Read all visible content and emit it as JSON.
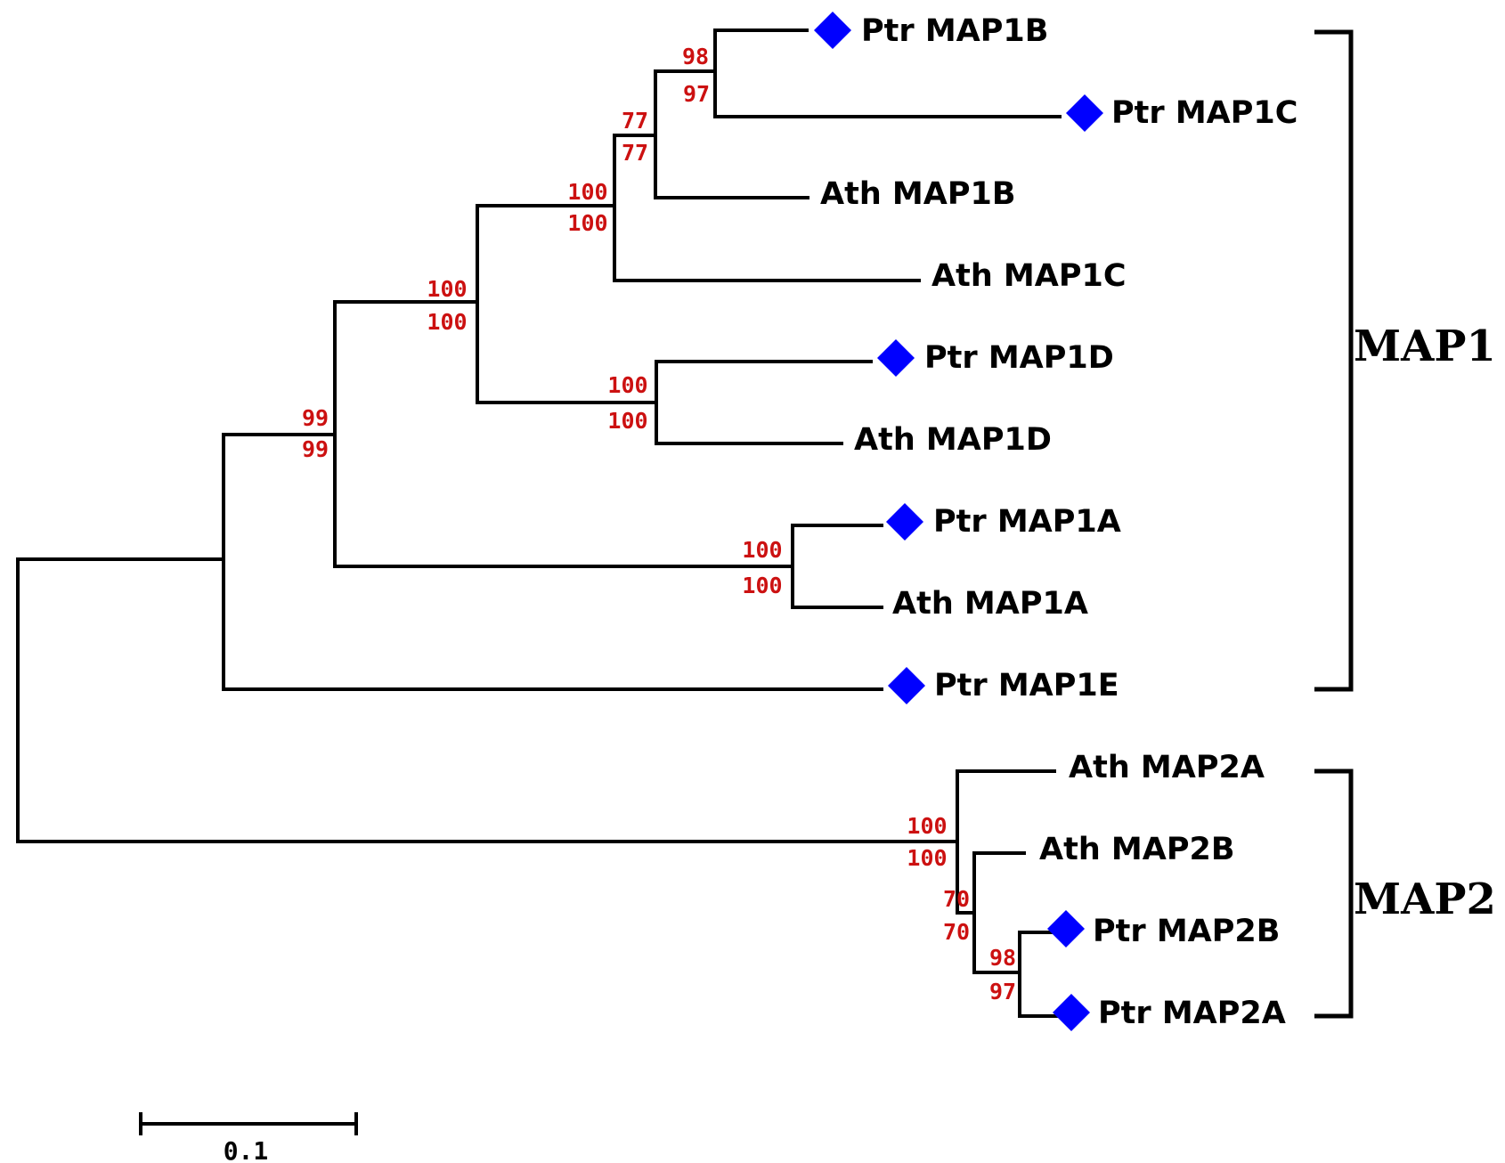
{
  "leaves": [
    {
      "id": "l1",
      "label": "Ptr MAP1B",
      "marker": true
    },
    {
      "id": "l2",
      "label": "Ptr MAP1C",
      "marker": true
    },
    {
      "id": "l3",
      "label": "Ath MAP1B",
      "marker": false
    },
    {
      "id": "l4",
      "label": "Ath MAP1C",
      "marker": false
    },
    {
      "id": "l5",
      "label": "Ptr MAP1D",
      "marker": true
    },
    {
      "id": "l6",
      "label": "Ath MAP1D",
      "marker": false
    },
    {
      "id": "l7",
      "label": "Ptr MAP1A",
      "marker": true
    },
    {
      "id": "l8",
      "label": "Ath MAP1A",
      "marker": false
    },
    {
      "id": "l9",
      "label": "Ptr MAP1E",
      "marker": true
    },
    {
      "id": "l10",
      "label": "Ath MAP2A",
      "marker": false
    },
    {
      "id": "l11",
      "label": "Ath MAP2B",
      "marker": false
    },
    {
      "id": "l12",
      "label": "Ptr MAP2B",
      "marker": true
    },
    {
      "id": "l13",
      "label": "Ptr MAP2A",
      "marker": true
    }
  ],
  "bootstrap": [
    {
      "node": "ptr1b-ptr1c",
      "upper": "98",
      "lower": "97"
    },
    {
      "node": "map1bc-ath1b",
      "upper": "77",
      "lower": "77"
    },
    {
      "node": "map1bc-ath1c",
      "upper": "100",
      "lower": "100"
    },
    {
      "node": "map1bcd",
      "upper": "100",
      "lower": "100"
    },
    {
      "node": "map1d",
      "upper": "100",
      "lower": "100"
    },
    {
      "node": "map1abcd",
      "upper": "99",
      "lower": "99"
    },
    {
      "node": "map1a",
      "upper": "100",
      "lower": "100"
    },
    {
      "node": "map2",
      "upper": "100",
      "lower": "100"
    },
    {
      "node": "map2-inner",
      "upper": "70",
      "lower": "70"
    },
    {
      "node": "ptr-map2",
      "upper": "98",
      "lower": "97"
    }
  ],
  "groups": [
    {
      "label": "MAP1"
    },
    {
      "label": "MAP2"
    }
  ],
  "scale_bar": {
    "label": "0.1"
  },
  "colors": {
    "branch": "#000000",
    "support": "#cc1111",
    "ptr_marker": "#0000ff"
  },
  "marker_shape": "blue-diamond"
}
